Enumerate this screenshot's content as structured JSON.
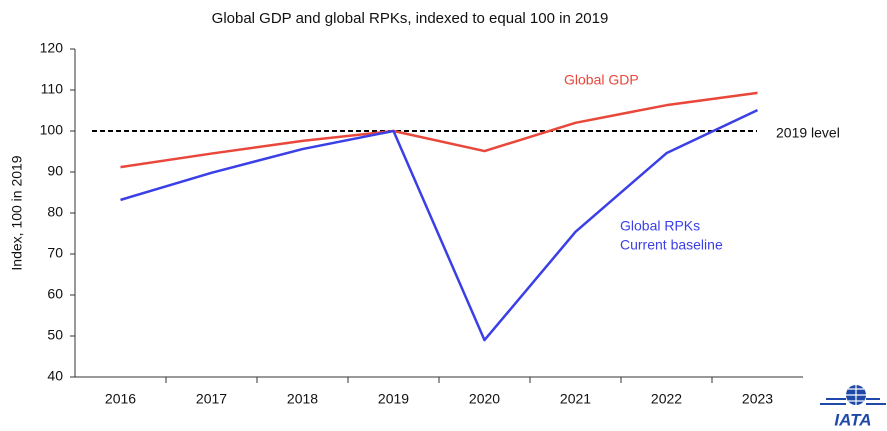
{
  "chart_data": {
    "type": "line",
    "title": "Global GDP and global RPKs, indexed to equal 100 in 2019",
    "y_label": "Index, 100 in 2019",
    "categories": [
      "2016",
      "2017",
      "2018",
      "2019",
      "2020",
      "2021",
      "2022",
      "2023"
    ],
    "series": [
      {
        "name": "Global GDP",
        "color": "#e8473a",
        "values": [
          91.2,
          94.5,
          97.6,
          100,
          95.1,
          102,
          106.3,
          109.3
        ]
      },
      {
        "name": "Global RPKs",
        "color": "#3b3fe6",
        "values": [
          83.2,
          89.8,
          95.6,
          100,
          49,
          75.4,
          94.6,
          105.1
        ]
      }
    ],
    "annotations": [
      "Current baseline"
    ],
    "reference": {
      "value": 100,
      "label": "2019 level"
    },
    "ylim": [
      40,
      120
    ],
    "yticks": [
      40,
      50,
      60,
      70,
      80,
      90,
      100,
      110,
      120
    ],
    "grid": false,
    "logo_text": "IATA"
  }
}
